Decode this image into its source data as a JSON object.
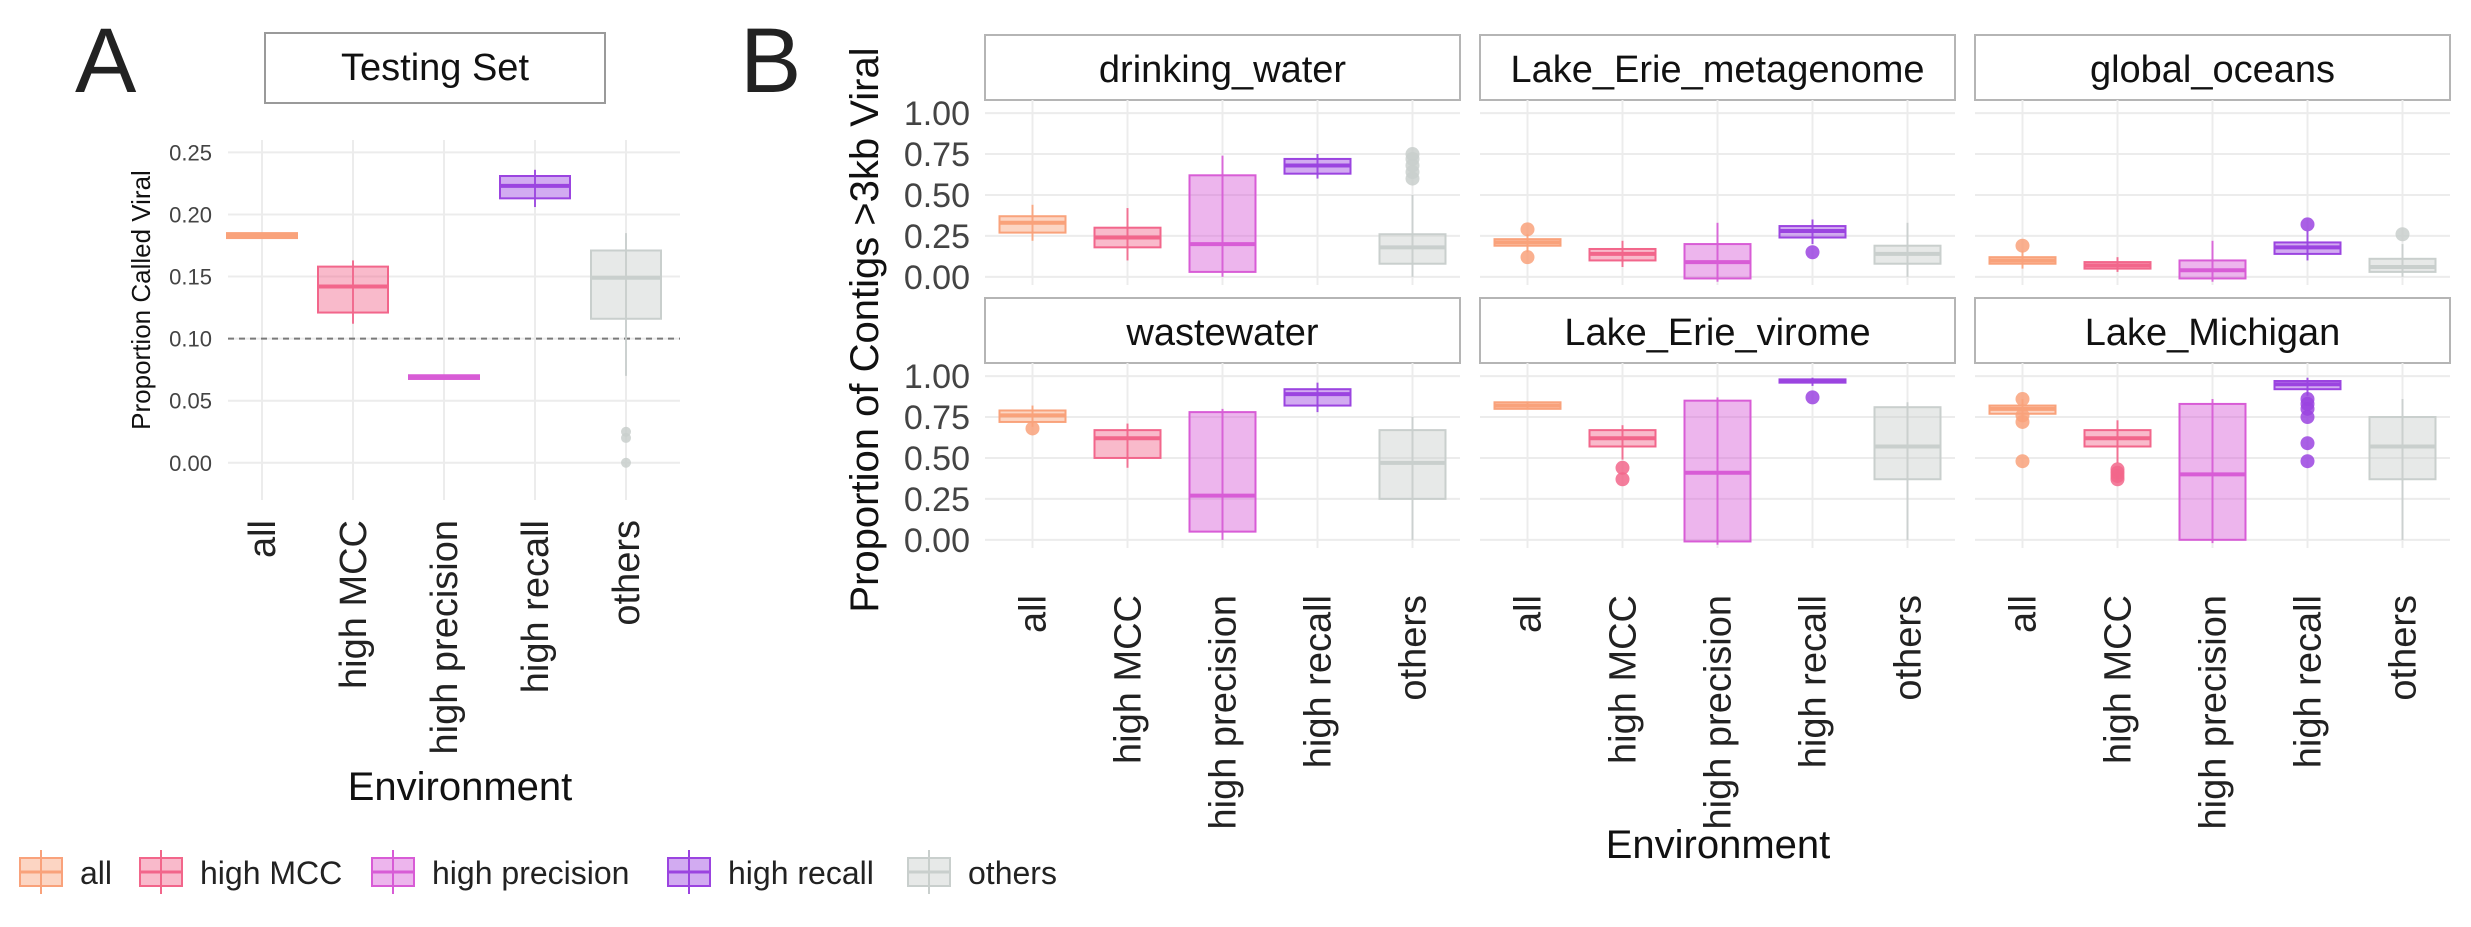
{
  "panel_letters": {
    "a": "A",
    "b": "B"
  },
  "colors": {
    "all": "#f9a27b",
    "high MCC": "#f2668b",
    "high precision": "#d85cd6",
    "high recall": "#9b44e0",
    "others": "#c9cfcd"
  },
  "legend": {
    "items": [
      {
        "label": "all",
        "key": "all"
      },
      {
        "label": "high MCC",
        "key": "high MCC"
      },
      {
        "label": "high precision",
        "key": "high precision"
      },
      {
        "label": "high recall",
        "key": "high recall"
      },
      {
        "label": "others",
        "key": "others"
      }
    ]
  },
  "chart_data": [
    {
      "type": "box",
      "panel": "A",
      "strip_title": "Testing Set",
      "xlabel": "Environment",
      "ylabel": "Proportion Called Viral",
      "categories": [
        "all",
        "high MCC",
        "high precision",
        "high recall",
        "others"
      ],
      "ylim": [
        -0.03,
        0.26
      ],
      "yticks": [
        0.0,
        0.05,
        0.1,
        0.15,
        0.2,
        0.25
      ],
      "ytick_labels": [
        "0.00",
        "0.05",
        "0.10",
        "0.15",
        "0.20",
        "0.25"
      ],
      "reference_line": 0.1,
      "grid": true,
      "boxes": [
        {
          "category": "all",
          "q1": 0.181,
          "median": 0.183,
          "q3": 0.185,
          "wlo": 0.181,
          "whi": 0.185,
          "outliers": []
        },
        {
          "category": "high MCC",
          "q1": 0.121,
          "median": 0.142,
          "q3": 0.158,
          "wlo": 0.112,
          "whi": 0.163,
          "outliers": []
        },
        {
          "category": "high precision",
          "q1": 0.0675,
          "median": 0.069,
          "q3": 0.0705,
          "wlo": 0.0675,
          "whi": 0.0705,
          "outliers": []
        },
        {
          "category": "high recall",
          "q1": 0.213,
          "median": 0.223,
          "q3": 0.231,
          "wlo": 0.206,
          "whi": 0.236,
          "outliers": []
        },
        {
          "category": "others",
          "q1": 0.116,
          "median": 0.149,
          "q3": 0.171,
          "wlo": 0.07,
          "whi": 0.185,
          "outliers": [
            0.0,
            0.02,
            0.025
          ]
        }
      ]
    },
    {
      "type": "box",
      "panel": "B",
      "xlabel": "Environment",
      "ylabel": "Proportion of Contigs >3kb Viral",
      "categories": [
        "all",
        "high MCC",
        "high precision",
        "high recall",
        "others"
      ],
      "ylim": [
        -0.05,
        1.08
      ],
      "yticks": [
        0.0,
        0.25,
        0.5,
        0.75,
        1.0
      ],
      "ytick_labels": [
        "0.00",
        "0.25",
        "0.50",
        "0.75",
        "1.00"
      ],
      "grid": true,
      "facets": [
        {
          "title": "drinking_water",
          "boxes": [
            {
              "category": "all",
              "q1": 0.27,
              "median": 0.33,
              "q3": 0.37,
              "wlo": 0.22,
              "whi": 0.44,
              "outliers": []
            },
            {
              "category": "high MCC",
              "q1": 0.18,
              "median": 0.24,
              "q3": 0.3,
              "wlo": 0.1,
              "whi": 0.42,
              "outliers": []
            },
            {
              "category": "high precision",
              "q1": 0.03,
              "median": 0.2,
              "q3": 0.62,
              "wlo": 0.0,
              "whi": 0.74,
              "outliers": []
            },
            {
              "category": "high recall",
              "q1": 0.63,
              "median": 0.68,
              "q3": 0.72,
              "wlo": 0.6,
              "whi": 0.75,
              "outliers": []
            },
            {
              "category": "others",
              "q1": 0.08,
              "median": 0.18,
              "q3": 0.26,
              "wlo": 0.0,
              "whi": 0.5,
              "outliers": [
                0.6,
                0.64,
                0.68,
                0.72,
                0.75
              ]
            }
          ]
        },
        {
          "title": "Lake_Erie_metagenome",
          "boxes": [
            {
              "category": "all",
              "q1": 0.19,
              "median": 0.21,
              "q3": 0.23,
              "wlo": 0.15,
              "whi": 0.26,
              "outliers": [
                0.12,
                0.29
              ]
            },
            {
              "category": "high MCC",
              "q1": 0.1,
              "median": 0.14,
              "q3": 0.17,
              "wlo": 0.06,
              "whi": 0.22,
              "outliers": []
            },
            {
              "category": "high precision",
              "q1": -0.01,
              "median": 0.09,
              "q3": 0.2,
              "wlo": -0.03,
              "whi": 0.33,
              "outliers": []
            },
            {
              "category": "high recall",
              "q1": 0.24,
              "median": 0.28,
              "q3": 0.31,
              "wlo": 0.2,
              "whi": 0.35,
              "outliers": [
                0.15
              ]
            },
            {
              "category": "others",
              "q1": 0.08,
              "median": 0.14,
              "q3": 0.19,
              "wlo": 0.0,
              "whi": 0.33,
              "outliers": []
            }
          ]
        },
        {
          "title": "global_oceans",
          "boxes": [
            {
              "category": "all",
              "q1": 0.08,
              "median": 0.1,
              "q3": 0.12,
              "wlo": 0.05,
              "whi": 0.16,
              "outliers": [
                0.19
              ]
            },
            {
              "category": "high MCC",
              "q1": 0.05,
              "median": 0.07,
              "q3": 0.09,
              "wlo": 0.03,
              "whi": 0.12,
              "outliers": []
            },
            {
              "category": "high precision",
              "q1": -0.01,
              "median": 0.04,
              "q3": 0.1,
              "wlo": -0.03,
              "whi": 0.22,
              "outliers": []
            },
            {
              "category": "high recall",
              "q1": 0.14,
              "median": 0.18,
              "q3": 0.21,
              "wlo": 0.1,
              "whi": 0.28,
              "outliers": [
                0.32
              ]
            },
            {
              "category": "others",
              "q1": 0.03,
              "median": 0.06,
              "q3": 0.11,
              "wlo": 0.0,
              "whi": 0.2,
              "outliers": [
                0.26
              ]
            }
          ]
        },
        {
          "title": "wastewater",
          "boxes": [
            {
              "category": "all",
              "q1": 0.72,
              "median": 0.76,
              "q3": 0.79,
              "wlo": 0.69,
              "whi": 0.82,
              "outliers": [
                0.68
              ]
            },
            {
              "category": "high MCC",
              "q1": 0.5,
              "median": 0.62,
              "q3": 0.67,
              "wlo": 0.44,
              "whi": 0.71,
              "outliers": []
            },
            {
              "category": "high precision",
              "q1": 0.05,
              "median": 0.27,
              "q3": 0.78,
              "wlo": 0.0,
              "whi": 0.8,
              "outliers": []
            },
            {
              "category": "high recall",
              "q1": 0.82,
              "median": 0.89,
              "q3": 0.92,
              "wlo": 0.78,
              "whi": 0.96,
              "outliers": []
            },
            {
              "category": "others",
              "q1": 0.25,
              "median": 0.47,
              "q3": 0.67,
              "wlo": 0.0,
              "whi": 0.75,
              "outliers": []
            }
          ]
        },
        {
          "title": "Lake_Erie_virome",
          "boxes": [
            {
              "category": "all",
              "q1": 0.8,
              "median": 0.82,
              "q3": 0.84,
              "wlo": 0.8,
              "whi": 0.84,
              "outliers": []
            },
            {
              "category": "high MCC",
              "q1": 0.57,
              "median": 0.62,
              "q3": 0.67,
              "wlo": 0.49,
              "whi": 0.7,
              "outliers": [
                0.37,
                0.44
              ]
            },
            {
              "category": "high precision",
              "q1": -0.01,
              "median": 0.41,
              "q3": 0.85,
              "wlo": -0.03,
              "whi": 0.87,
              "outliers": []
            },
            {
              "category": "high recall",
              "q1": 0.96,
              "median": 0.97,
              "q3": 0.98,
              "wlo": 0.94,
              "whi": 0.99,
              "outliers": [
                0.87
              ]
            },
            {
              "category": "others",
              "q1": 0.37,
              "median": 0.57,
              "q3": 0.81,
              "wlo": 0.0,
              "whi": 0.84,
              "outliers": []
            }
          ]
        },
        {
          "title": "Lake_Michigan",
          "boxes": [
            {
              "category": "all",
              "q1": 0.77,
              "median": 0.8,
              "q3": 0.82,
              "wlo": 0.72,
              "whi": 0.86,
              "outliers": [
                0.48,
                0.72,
                0.76,
                0.86
              ]
            },
            {
              "category": "high MCC",
              "q1": 0.57,
              "median": 0.62,
              "q3": 0.67,
              "wlo": 0.47,
              "whi": 0.73,
              "outliers": [
                0.37,
                0.39,
                0.41,
                0.43
              ]
            },
            {
              "category": "high precision",
              "q1": 0.0,
              "median": 0.4,
              "q3": 0.83,
              "wlo": -0.02,
              "whi": 0.86,
              "outliers": []
            },
            {
              "category": "high recall",
              "q1": 0.92,
              "median": 0.95,
              "q3": 0.97,
              "wlo": 0.88,
              "whi": 0.99,
              "outliers": [
                0.48,
                0.59,
                0.75,
                0.8,
                0.83,
                0.86
              ]
            },
            {
              "category": "others",
              "q1": 0.37,
              "median": 0.57,
              "q3": 0.75,
              "wlo": 0.0,
              "whi": 0.86,
              "outliers": []
            }
          ]
        }
      ]
    }
  ]
}
